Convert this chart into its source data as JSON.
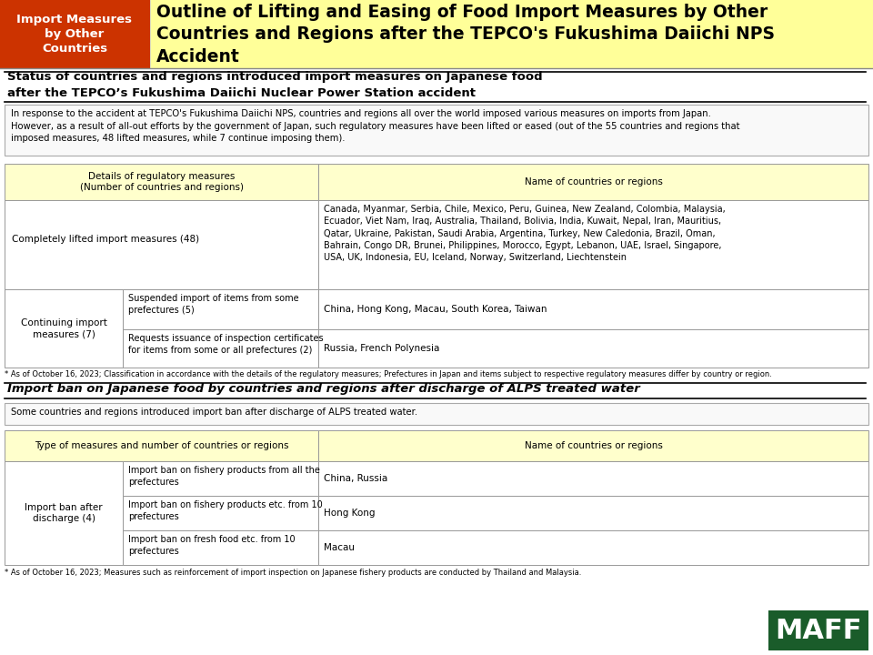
{
  "title_box_color": "#cc3300",
  "title_box_text": "Import Measures\nby Other\nCountries",
  "title_text": "Outline of Lifting and Easing of Food Import Measures by Other\nCountries and Regions after the TEPCO's Fukushima Daiichi NPS\nAccident",
  "header_bg": "#ffff99",
  "section1_heading_line1": "Status of countries and regions introduced import measures on Japanese food",
  "section1_heading_line2": "after the TEPCO’s Fukushima Daiichi Nuclear Power Station accident",
  "intro_text": "In response to the accident at TEPCO's Fukushima Daiichi NPS, countries and regions all over the world imposed various measures on imports from Japan.\nHowever, as a result of all-out efforts by the government of Japan, such regulatory measures have been lifted or eased (out of the 55 countries and regions that\nimposed measures, 48 lifted measures, while 7 continue imposing them).",
  "table1_header_col1": "Details of regulatory measures\n(Number of countries and regions)",
  "table1_header_col2": "Name of countries or regions",
  "table1_header_bg": "#ffffcc",
  "row1_col1": "Completely lifted import measures (48)",
  "row1_col2": "Canada, Myanmar, Serbia, Chile, Mexico, Peru, Guinea, New Zealand, Colombia, Malaysia,\nEcuador, Viet Nam, Iraq, Australia, Thailand, Bolivia, India, Kuwait, Nepal, Iran, Mauritius,\nQatar, Ukraine, Pakistan, Saudi Arabia, Argentina, Turkey, New Caledonia, Brazil, Oman,\nBahrain, Congo DR, Brunei, Philippines, Morocco, Egypt, Lebanon, UAE, Israel, Singapore,\nUSA, UK, Indonesia, EU, Iceland, Norway, Switzerland, Liechtenstein",
  "row2_merged_col1": "Continuing import\nmeasures (7)",
  "row2a_col2": "Suspended import of items from some\nprefectures (5)",
  "row2a_col3": "China, Hong Kong, Macau, South Korea, Taiwan",
  "row2b_col2": "Requests issuance of inspection certificates\nfor items from some or all prefectures (2)",
  "row2b_col3": "Russia, French Polynesia",
  "footnote1": "* As of October 16, 2023; Classification in accordance with the details of the regulatory measures; Prefectures in Japan and items subject to respective regulatory measures differ by country or region.",
  "section2_heading": "Import ban on Japanese food by countries and regions after discharge of ALPS treated water",
  "section2_intro": "Some countries and regions introduced import ban after discharge of ALPS treated water.",
  "table2_header_col1": "Type of measures and number of countries or regions",
  "table2_header_col2": "Name of countries or regions",
  "table2_row1_merged": "Import ban after\ndischarge (4)",
  "table2_row1a_col2": "Import ban on fishery products from all the\nprefectures",
  "table2_row1a_col3": "China, Russia",
  "table2_row1b_col2": "Import ban on fishery products etc. from 10\nprefectures",
  "table2_row1b_col3": "Hong Kong",
  "table2_row1c_col2": "Import ban on fresh food etc. from 10\nprefectures",
  "table2_row1c_col3": "Macau",
  "footnote2": "* As of October 16, 2023; Measures such as reinforcement of import inspection on Japanese fishery products are conducted by Thailand and Malaysia.",
  "maff_bg": "#1a5c2a",
  "maff_text": "MAFF",
  "bg_color": "#ffffff",
  "border_color": "#999999",
  "table_bg_white": "#ffffff",
  "table_bg_yellow": "#ffffcc"
}
